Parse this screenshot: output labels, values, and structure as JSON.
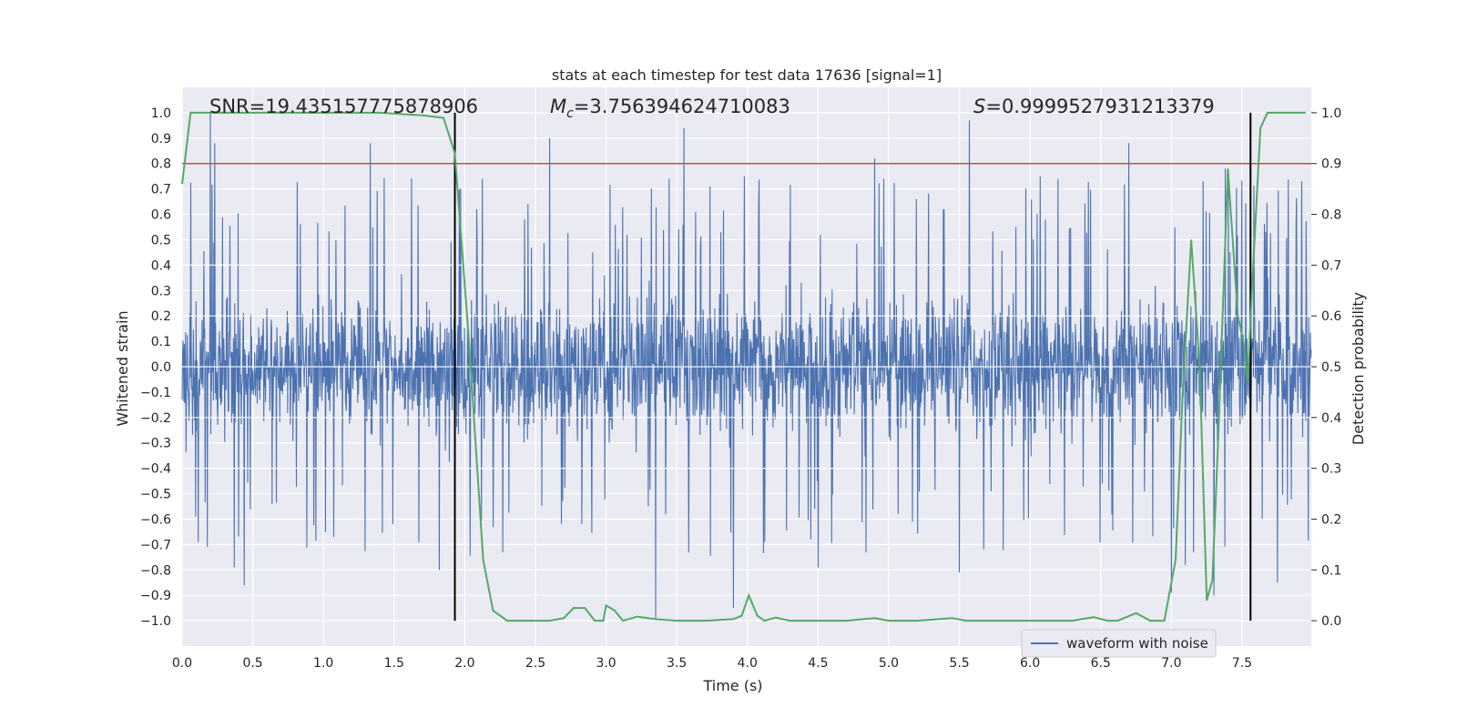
{
  "chart_data": {
    "type": "line",
    "title": "stats at each timestep for test data 17636 [signal=1]",
    "xlabel": "Time (s)",
    "ylabel": "Whitened strain",
    "y2label": "Detection probability",
    "xlim": [
      0.0,
      7.99
    ],
    "ylim": [
      -1.1,
      1.1
    ],
    "y2lim": [
      -0.05,
      1.05
    ],
    "x_ticks": [
      "0.0",
      "0.5",
      "1.0",
      "1.5",
      "2.0",
      "2.5",
      "3.0",
      "3.5",
      "4.0",
      "4.5",
      "5.0",
      "5.5",
      "6.0",
      "6.5",
      "7.0",
      "7.5"
    ],
    "y_ticks": [
      "1.0",
      "0.9",
      "0.8",
      "0.7",
      "0.6",
      "0.5",
      "0.4",
      "0.3",
      "0.2",
      "0.1",
      "0.0",
      "−0.1",
      "−0.2",
      "−0.3",
      "−0.4",
      "−0.5",
      "−0.6",
      "−0.7",
      "−0.8",
      "−0.9",
      "−1.0"
    ],
    "y2_ticks": [
      "1.0",
      "0.9",
      "0.8",
      "0.7",
      "0.6",
      "0.5",
      "0.4",
      "0.3",
      "0.2",
      "0.1",
      "0.0"
    ],
    "annotations": {
      "snr": "SNR=19.435157775878906",
      "mc_symbol": "M",
      "mc_sub": "c",
      "mc_value": "=3.756394624710083",
      "s_symbol": "S",
      "s_value": "=0.9999527931213379"
    },
    "legend": {
      "label": "waveform with noise",
      "placement": "lower-right"
    },
    "threshold": {
      "value": 0.9,
      "axis": "right",
      "color": "#c44e52"
    },
    "vlines": [
      {
        "x": 1.93,
        "ymin": -1.0,
        "ymax": 1.0
      },
      {
        "x": 7.56,
        "ymin": -1.0,
        "ymax": 1.0
      }
    ],
    "series": [
      {
        "name": "waveform with noise",
        "axis": "left",
        "color": "#4c72b0",
        "description": "whitened noisy strain, mostly within +/-0.45 with spikes reaching +/-1.0",
        "spikes": [
          [
            0.2,
            1.0
          ],
          [
            0.23,
            0.88
          ],
          [
            1.33,
            0.88
          ],
          [
            2.6,
            0.9
          ],
          [
            3.55,
            0.94
          ],
          [
            4.9,
            0.82
          ],
          [
            5.57,
            0.97
          ],
          [
            6.7,
            0.88
          ],
          [
            7.38,
            0.78
          ],
          [
            0.44,
            -0.86
          ],
          [
            0.37,
            -0.79
          ],
          [
            1.82,
            -0.8
          ],
          [
            3.35,
            -0.99
          ],
          [
            3.9,
            -0.95
          ],
          [
            4.5,
            -0.79
          ],
          [
            5.5,
            -0.81
          ],
          [
            7.0,
            -0.89
          ],
          [
            7.3,
            -0.9
          ],
          [
            7.75,
            -0.85
          ],
          [
            7.1,
            -0.78
          ]
        ]
      },
      {
        "name": "detection probability",
        "axis": "right",
        "color": "#55a868",
        "x": [
          0.0,
          0.06,
          0.15,
          0.3,
          0.5,
          0.8,
          1.1,
          1.4,
          1.7,
          1.85,
          1.93,
          2.03,
          2.13,
          2.2,
          2.3,
          2.5,
          2.6,
          2.7,
          2.77,
          2.85,
          2.92,
          2.98,
          3.0,
          3.06,
          3.12,
          3.22,
          3.35,
          3.5,
          3.7,
          3.9,
          3.96,
          4.01,
          4.07,
          4.12,
          4.2,
          4.3,
          4.5,
          4.7,
          4.9,
          5.0,
          5.2,
          5.45,
          5.55,
          5.7,
          6.0,
          6.3,
          6.45,
          6.55,
          6.62,
          6.75,
          6.85,
          6.95,
          7.03,
          7.08,
          7.14,
          7.2,
          7.25,
          7.29,
          7.33,
          7.4,
          7.47,
          7.51,
          7.54,
          7.57,
          7.63,
          7.68,
          7.73,
          7.95
        ],
        "y": [
          0.86,
          1.0,
          1.0,
          1.0,
          1.0,
          1.0,
          1.0,
          1.0,
          0.995,
          0.99,
          0.92,
          0.55,
          0.12,
          0.02,
          0.0,
          0.0,
          0.0,
          0.005,
          0.025,
          0.025,
          0.0,
          0.0,
          0.03,
          0.02,
          0.0,
          0.008,
          0.003,
          0.0,
          0.0,
          0.003,
          0.01,
          0.05,
          0.01,
          0.0,
          0.006,
          0.0,
          0.0,
          0.0,
          0.005,
          0.0,
          0.0,
          0.005,
          0.0,
          0.0,
          0.0,
          0.0,
          0.007,
          0.0,
          0.0,
          0.015,
          0.0,
          0.0,
          0.12,
          0.45,
          0.75,
          0.5,
          0.04,
          0.08,
          0.35,
          0.89,
          0.6,
          0.55,
          0.47,
          0.65,
          0.97,
          1.0,
          1.0,
          1.0
        ]
      }
    ]
  }
}
